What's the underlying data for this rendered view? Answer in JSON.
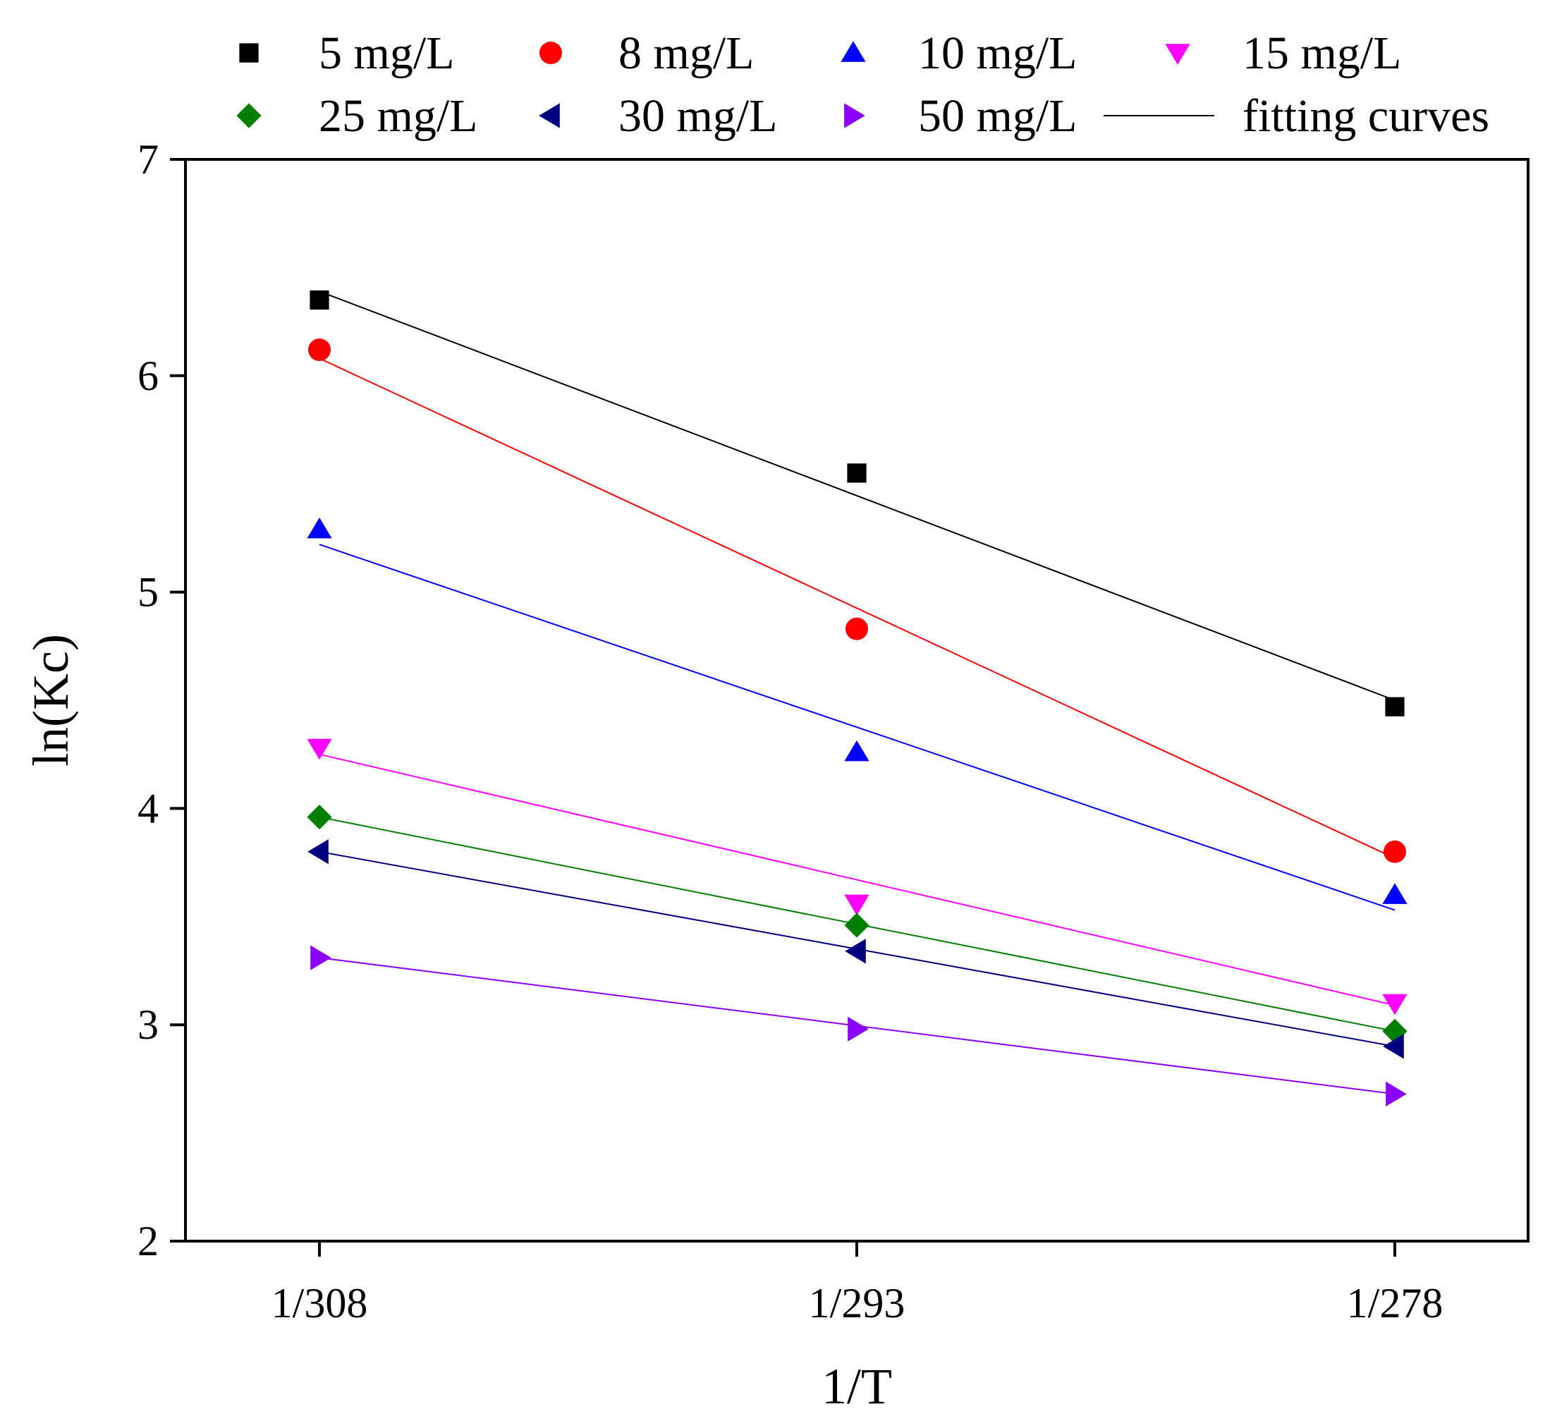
{
  "chart_data": {
    "type": "scatter",
    "title": "",
    "xlabel": "1/T",
    "ylabel": "ln(Kc)",
    "x_categories": [
      "1/308",
      "1/293",
      "1/278"
    ],
    "ylim": [
      2,
      7
    ],
    "yticks": [
      2,
      3,
      4,
      5,
      6,
      7
    ],
    "grid": false,
    "legend_position": "top",
    "fit_label": "fitting curves",
    "series": [
      {
        "name": "5 mg/L",
        "marker": "square",
        "color": "#000000",
        "values": [
          6.35,
          5.55,
          4.47
        ],
        "fit": [
          6.39,
          4.5
        ]
      },
      {
        "name": "8 mg/L",
        "marker": "circle",
        "color": "#ff0000",
        "values": [
          6.12,
          4.83,
          3.8
        ],
        "fit": [
          6.08,
          3.77
        ]
      },
      {
        "name": "10 mg/L",
        "marker": "triangle-up",
        "color": "#0000ff",
        "values": [
          5.29,
          4.26,
          3.6
        ],
        "fit": [
          5.22,
          3.53
        ]
      },
      {
        "name": "15 mg/L",
        "marker": "triangle-down",
        "color": "#ff00ff",
        "values": [
          4.28,
          3.56,
          3.1
        ],
        "fit": [
          4.25,
          3.09
        ]
      },
      {
        "name": "25 mg/L",
        "marker": "diamond",
        "color": "#008000",
        "values": [
          3.96,
          3.46,
          2.97
        ],
        "fit": [
          3.96,
          2.97
        ]
      },
      {
        "name": "30 mg/L",
        "marker": "triangle-left",
        "color": "#000080",
        "values": [
          3.8,
          3.34,
          2.9
        ],
        "fit": [
          3.8,
          2.9
        ]
      },
      {
        "name": "50 mg/L",
        "marker": "triangle-right",
        "color": "#8b00ff",
        "values": [
          3.31,
          2.98,
          2.68
        ],
        "fit": [
          3.31,
          2.68
        ]
      }
    ]
  }
}
